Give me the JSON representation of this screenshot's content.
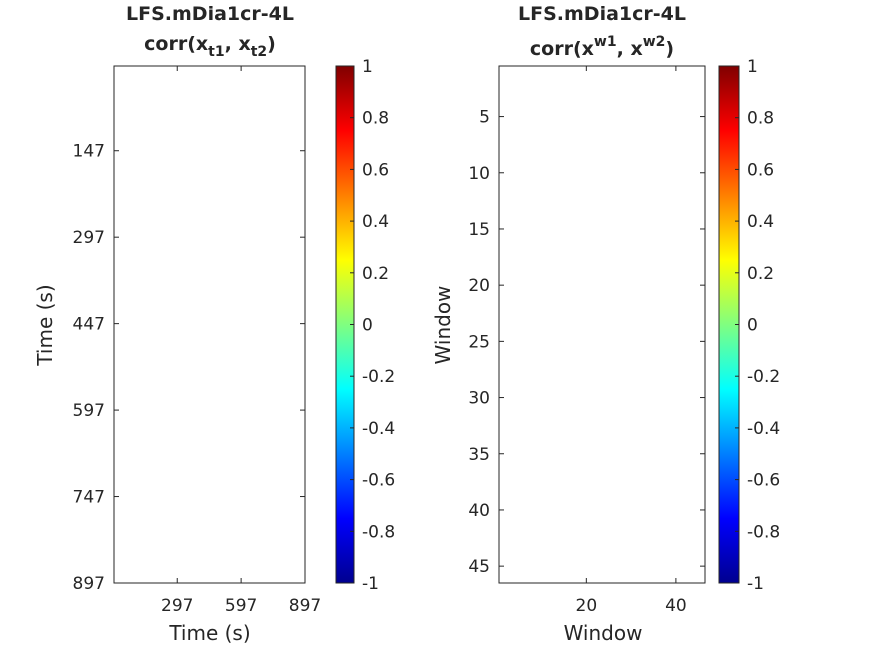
{
  "chart_data": [
    {
      "type": "heatmap",
      "title_line1": "LFS.mDia1cr-4L",
      "title_corr": "corr(",
      "title_var1": "x",
      "title_sub1": "t1",
      "title_sep": ", ",
      "title_var2": "x",
      "title_sub2": "t2",
      "title_close": ")",
      "xlabel": "Time (s)",
      "ylabel": "Time (s)",
      "xlim": [
        0,
        897
      ],
      "ylim": [
        0,
        897
      ],
      "xticks": [
        297,
        597,
        897
      ],
      "yticks": [
        147,
        297,
        447,
        597,
        747,
        897
      ],
      "values": [],
      "colorbar": {
        "ticks": [
          1,
          0.8,
          0.6,
          0.4,
          0.2,
          0,
          -0.2,
          -0.4,
          -0.6,
          -0.8,
          -1
        ],
        "clim": [
          -1,
          1
        ],
        "colormap": "jet"
      }
    },
    {
      "type": "heatmap",
      "title_line1": "LFS.mDia1cr-4L",
      "title_corr": "corr(",
      "title_var1": "x",
      "title_sup1": "w1",
      "title_sep": ", ",
      "title_var2": "x",
      "title_sup2": "w2",
      "title_close": ")",
      "xlabel": "Window",
      "ylabel": "Window",
      "xlim": [
        0.5,
        46.5
      ],
      "ylim": [
        0.5,
        46.5
      ],
      "xticks": [
        20,
        40
      ],
      "yticks": [
        5,
        10,
        15,
        20,
        25,
        30,
        35,
        40,
        45
      ],
      "values": [],
      "colorbar": {
        "ticks": [
          1,
          0.8,
          0.6,
          0.4,
          0.2,
          0,
          -0.2,
          -0.4,
          -0.6,
          -0.8,
          -1
        ],
        "clim": [
          -1,
          1
        ],
        "colormap": "jet"
      }
    }
  ]
}
